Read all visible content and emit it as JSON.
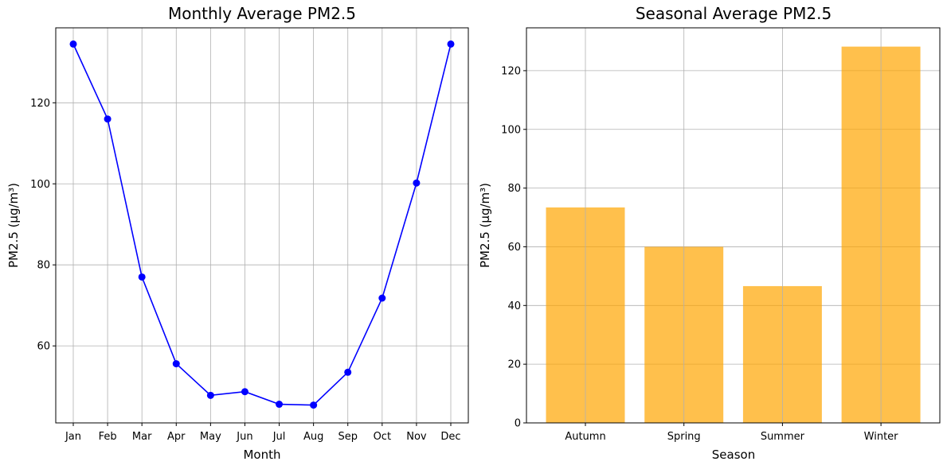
{
  "chart_data": [
    {
      "type": "line",
      "title": "Monthly Average PM2.5",
      "xlabel": "Month",
      "ylabel": "PM2.5 (µg/m³)",
      "categories": [
        "Jan",
        "Feb",
        "Mar",
        "Apr",
        "May",
        "Jun",
        "Jul",
        "Aug",
        "Sep",
        "Oct",
        "Nov",
        "Dec"
      ],
      "values": [
        134.5,
        116.0,
        77.0,
        55.6,
        47.8,
        48.7,
        45.6,
        45.4,
        53.5,
        71.8,
        100.2,
        134.5
      ],
      "ylim": [
        41,
        138.5
      ],
      "yticks": [
        60,
        80,
        100,
        120
      ],
      "color": "#0000ff",
      "marker": "circle",
      "grid": true
    },
    {
      "type": "bar",
      "title": "Seasonal Average PM2.5",
      "xlabel": "Season",
      "ylabel": "PM2.5 (µg/m³)",
      "categories": [
        "Autumn",
        "Spring",
        "Summer",
        "Winter"
      ],
      "values": [
        73.4,
        60.0,
        46.6,
        128.2
      ],
      "ylim": [
        0,
        134.6
      ],
      "yticks": [
        0,
        20,
        40,
        60,
        80,
        100,
        120
      ],
      "color": "#ffa500",
      "alpha": 0.7,
      "grid": true
    }
  ]
}
